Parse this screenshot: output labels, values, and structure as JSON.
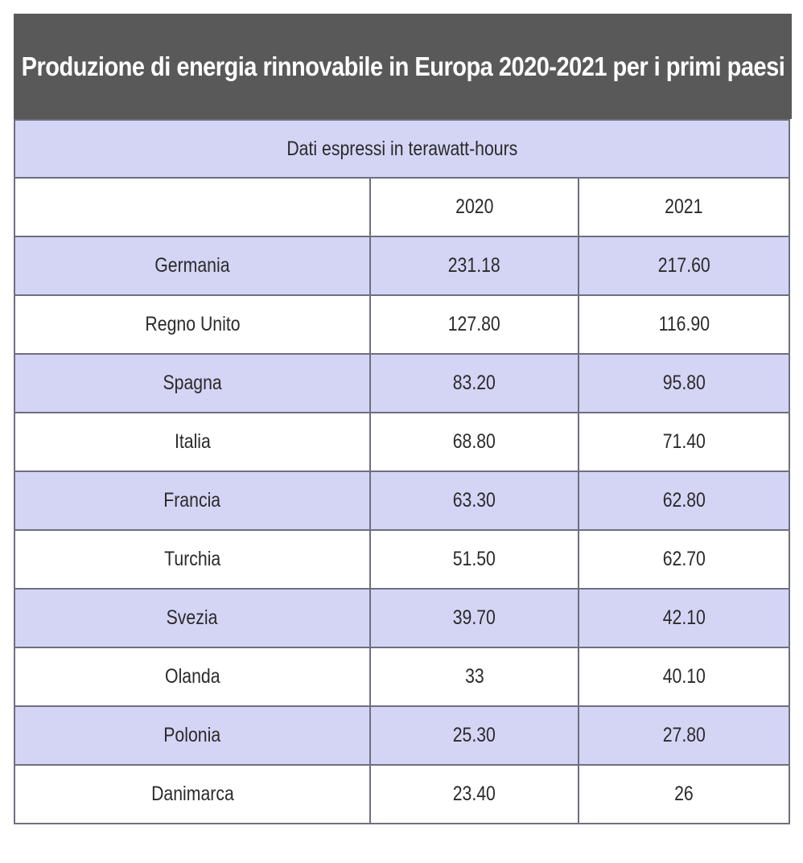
{
  "title": "Produzione di energia rinnovabile in Europa 2020-2021 per i primi paesi",
  "subtitle": "Dati espressi in terawatt-hours",
  "colors": {
    "title_bg": "#595959",
    "band": "#d4d5f5",
    "border": "#6e6e80"
  },
  "columns": [
    "",
    "2020",
    "2021"
  ],
  "rows": [
    {
      "country": "Germania",
      "y2020": "231.18",
      "y2021": "217.60"
    },
    {
      "country": "Regno Unito",
      "y2020": "127.80",
      "y2021": "116.90"
    },
    {
      "country": "Spagna",
      "y2020": "83.20",
      "y2021": "95.80"
    },
    {
      "country": "Italia",
      "y2020": "68.80",
      "y2021": "71.40"
    },
    {
      "country": "Francia",
      "y2020": "63.30",
      "y2021": "62.80"
    },
    {
      "country": "Turchia",
      "y2020": "51.50",
      "y2021": "62.70"
    },
    {
      "country": "Svezia",
      "y2020": "39.70",
      "y2021": "42.10"
    },
    {
      "country": "Olanda",
      "y2020": "33",
      "y2021": "40.10"
    },
    {
      "country": "Polonia",
      "y2020": "25.30",
      "y2021": "27.80"
    },
    {
      "country": "Danimarca",
      "y2020": "23.40",
      "y2021": "26"
    }
  ]
}
